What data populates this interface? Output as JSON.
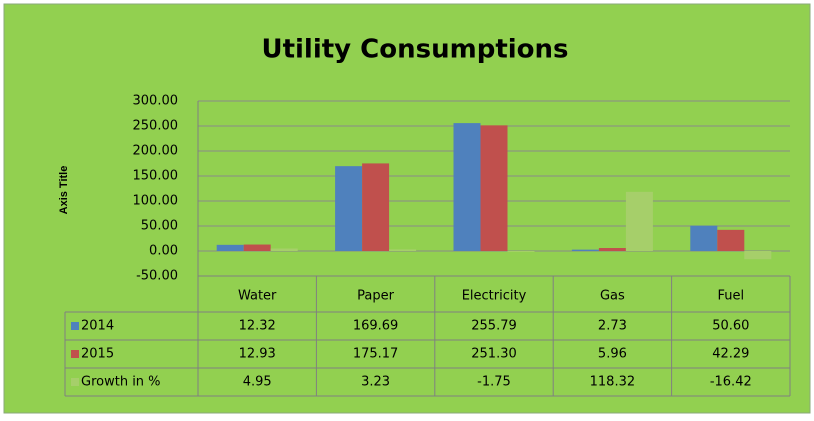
{
  "chart_data": {
    "type": "bar",
    "title": "Utility Consumptions",
    "y_axis_label": "Axis Title",
    "categories": [
      "Water",
      "Paper",
      "Electricity",
      "Gas",
      "Fuel"
    ],
    "series": [
      {
        "name": "2014",
        "color": "#4f81bd",
        "values": [
          12.32,
          169.69,
          255.79,
          2.73,
          50.6
        ],
        "value_labels": [
          "12.32",
          "169.69",
          "255.79",
          "2.73",
          "50.60"
        ]
      },
      {
        "name": "2015",
        "color": "#c0504d",
        "values": [
          12.93,
          175.17,
          251.3,
          5.96,
          42.29
        ],
        "value_labels": [
          "12.93",
          "175.17",
          "251.30",
          "5.96",
          "42.29"
        ]
      },
      {
        "name": "Growth in %",
        "color": "#a6cf6a",
        "values": [
          4.95,
          3.23,
          -1.75,
          118.32,
          -16.42
        ],
        "value_labels": [
          "4.95",
          "3.23",
          "-1.75",
          "118.32",
          "-16.42"
        ]
      }
    ],
    "ylim": [
      -50,
      300
    ],
    "yticks": [
      {
        "value": -50,
        "label": "-50.00"
      },
      {
        "value": 0,
        "label": "0.00"
      },
      {
        "value": 50,
        "label": "50.00"
      },
      {
        "value": 100,
        "label": "100.00"
      },
      {
        "value": 150,
        "label": "150.00"
      },
      {
        "value": 200,
        "label": "200.00"
      },
      {
        "value": 250,
        "label": "250.00"
      },
      {
        "value": 300,
        "label": "300.00"
      }
    ],
    "grid": true,
    "data_table": true
  }
}
